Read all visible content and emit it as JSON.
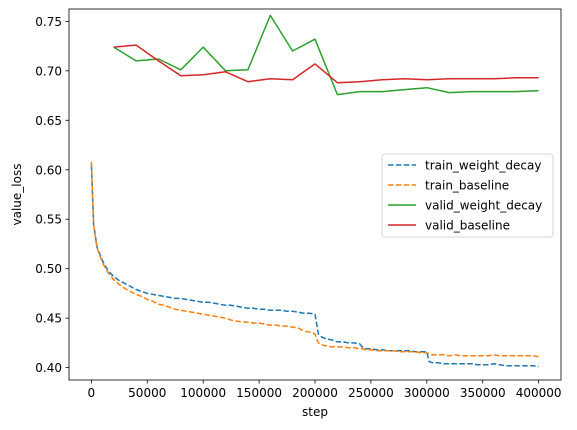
{
  "chart_data": {
    "type": "line",
    "xlabel": "step",
    "ylabel": "value_loss",
    "xlim": [
      -20000,
      420000
    ],
    "ylim": [
      0.3875,
      0.7625
    ],
    "xticks": [
      0,
      50000,
      100000,
      150000,
      200000,
      250000,
      300000,
      350000,
      400000
    ],
    "yticks": [
      0.4,
      0.45,
      0.5,
      0.55,
      0.6,
      0.65,
      0.7,
      0.75
    ],
    "grid": false,
    "legend_position": "center-right",
    "series": [
      {
        "name": "train_weight_decay",
        "color": "#1f77b4",
        "dash": "dashed",
        "x": [
          0,
          2000,
          5000,
          10000,
          15000,
          20000,
          25000,
          30000,
          35000,
          40000,
          45000,
          50000,
          55000,
          60000,
          65000,
          70000,
          75000,
          80000,
          85000,
          90000,
          95000,
          100000,
          105000,
          110000,
          115000,
          120000,
          125000,
          130000,
          135000,
          140000,
          145000,
          150000,
          155000,
          160000,
          165000,
          170000,
          175000,
          180000,
          185000,
          190000,
          195000,
          200000,
          203000,
          206000,
          210000,
          215000,
          220000,
          225000,
          230000,
          235000,
          240000,
          243000,
          245000,
          250000,
          255000,
          260000,
          265000,
          270000,
          275000,
          280000,
          285000,
          290000,
          295000,
          300000,
          302000,
          305000,
          310000,
          315000,
          320000,
          325000,
          330000,
          335000,
          340000,
          345000,
          350000,
          355000,
          360000,
          365000,
          370000,
          375000,
          380000,
          385000,
          390000,
          395000,
          400000
        ],
        "y": [
          0.605,
          0.545,
          0.522,
          0.508,
          0.498,
          0.492,
          0.488,
          0.485,
          0.482,
          0.479,
          0.477,
          0.475,
          0.474,
          0.473,
          0.472,
          0.471,
          0.47,
          0.47,
          0.469,
          0.468,
          0.467,
          0.466,
          0.466,
          0.465,
          0.464,
          0.463,
          0.463,
          0.462,
          0.461,
          0.46,
          0.46,
          0.459,
          0.459,
          0.458,
          0.458,
          0.458,
          0.457,
          0.457,
          0.456,
          0.455,
          0.455,
          0.454,
          0.434,
          0.431,
          0.429,
          0.428,
          0.426,
          0.426,
          0.425,
          0.425,
          0.424,
          0.42,
          0.419,
          0.419,
          0.418,
          0.418,
          0.417,
          0.417,
          0.417,
          0.417,
          0.417,
          0.416,
          0.416,
          0.416,
          0.406,
          0.405,
          0.405,
          0.404,
          0.404,
          0.404,
          0.404,
          0.404,
          0.404,
          0.403,
          0.403,
          0.403,
          0.404,
          0.403,
          0.402,
          0.402,
          0.402,
          0.402,
          0.402,
          0.402,
          0.401
        ]
      },
      {
        "name": "train_baseline",
        "color": "#ff7f0e",
        "dash": "dashed",
        "x": [
          0,
          2000,
          5000,
          10000,
          15000,
          20000,
          25000,
          30000,
          35000,
          40000,
          45000,
          50000,
          55000,
          60000,
          65000,
          70000,
          75000,
          80000,
          85000,
          90000,
          95000,
          100000,
          105000,
          110000,
          115000,
          120000,
          125000,
          130000,
          135000,
          140000,
          145000,
          150000,
          155000,
          160000,
          165000,
          170000,
          175000,
          180000,
          185000,
          190000,
          195000,
          200000,
          203000,
          206000,
          210000,
          215000,
          220000,
          225000,
          230000,
          235000,
          240000,
          243000,
          245000,
          250000,
          255000,
          260000,
          265000,
          270000,
          275000,
          280000,
          285000,
          290000,
          295000,
          300000,
          302000,
          305000,
          310000,
          315000,
          320000,
          325000,
          330000,
          335000,
          340000,
          345000,
          350000,
          355000,
          360000,
          365000,
          370000,
          375000,
          380000,
          385000,
          390000,
          395000,
          400000
        ],
        "y": [
          0.608,
          0.545,
          0.521,
          0.506,
          0.496,
          0.489,
          0.484,
          0.48,
          0.477,
          0.474,
          0.472,
          0.469,
          0.467,
          0.464,
          0.463,
          0.461,
          0.459,
          0.458,
          0.457,
          0.456,
          0.455,
          0.454,
          0.453,
          0.452,
          0.451,
          0.45,
          0.448,
          0.447,
          0.446,
          0.446,
          0.445,
          0.445,
          0.444,
          0.443,
          0.443,
          0.442,
          0.442,
          0.441,
          0.44,
          0.437,
          0.436,
          0.434,
          0.425,
          0.423,
          0.422,
          0.421,
          0.421,
          0.421,
          0.42,
          0.42,
          0.419,
          0.419,
          0.418,
          0.418,
          0.417,
          0.417,
          0.417,
          0.417,
          0.416,
          0.416,
          0.416,
          0.416,
          0.415,
          0.415,
          0.414,
          0.413,
          0.413,
          0.413,
          0.412,
          0.413,
          0.412,
          0.412,
          0.412,
          0.412,
          0.412,
          0.412,
          0.413,
          0.412,
          0.412,
          0.412,
          0.412,
          0.412,
          0.412,
          0.412,
          0.411
        ]
      },
      {
        "name": "valid_weight_decay",
        "color": "#2ca02c",
        "dash": "solid",
        "x": [
          20000,
          40000,
          60000,
          80000,
          100000,
          120000,
          140000,
          160000,
          180000,
          200000,
          220000,
          240000,
          260000,
          280000,
          300000,
          320000,
          340000,
          360000,
          380000,
          400000
        ],
        "y": [
          0.724,
          0.71,
          0.712,
          0.701,
          0.724,
          0.7,
          0.701,
          0.756,
          0.72,
          0.732,
          0.676,
          0.679,
          0.679,
          0.681,
          0.683,
          0.678,
          0.679,
          0.679,
          0.679,
          0.68
        ]
      },
      {
        "name": "valid_baseline",
        "color": "#d62728",
        "dash": "solid",
        "x": [
          20000,
          40000,
          60000,
          80000,
          100000,
          120000,
          140000,
          160000,
          180000,
          200000,
          220000,
          240000,
          260000,
          280000,
          300000,
          320000,
          340000,
          360000,
          380000,
          400000
        ],
        "y": [
          0.724,
          0.726,
          0.71,
          0.695,
          0.696,
          0.699,
          0.689,
          0.692,
          0.691,
          0.707,
          0.688,
          0.689,
          0.691,
          0.692,
          0.691,
          0.692,
          0.692,
          0.692,
          0.693,
          0.693
        ]
      }
    ]
  }
}
